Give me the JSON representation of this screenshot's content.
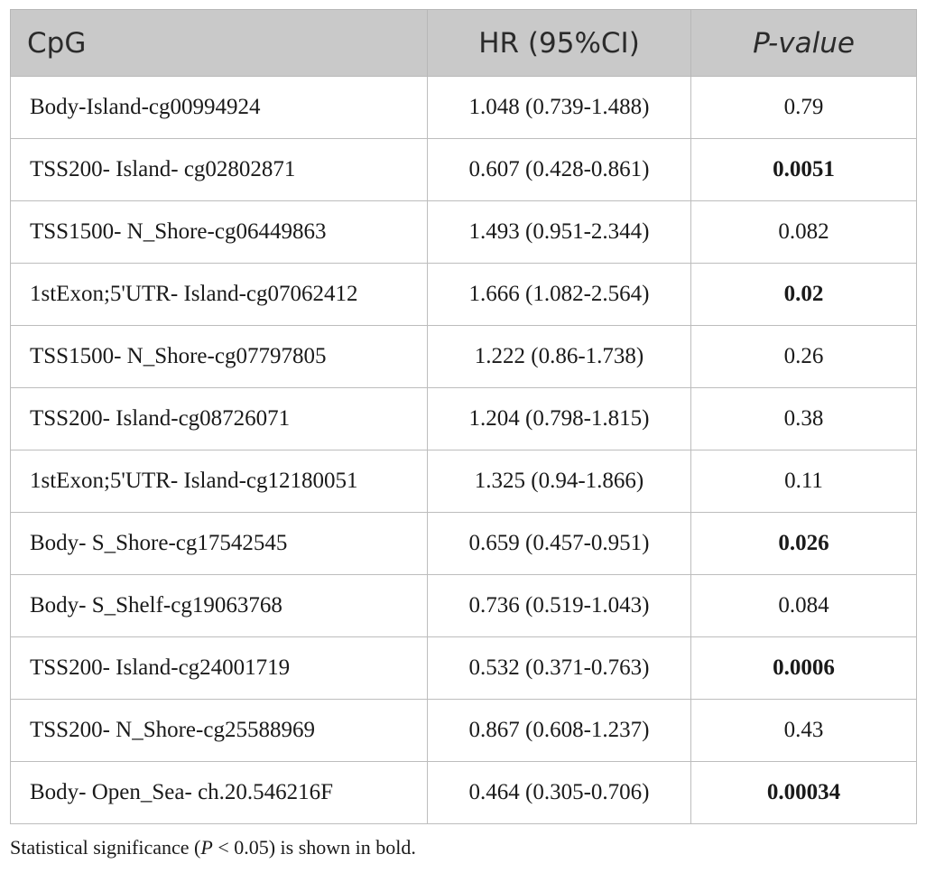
{
  "table": {
    "headers": [
      "CpG",
      "HR (95%CI)",
      "P-value"
    ],
    "rows": [
      {
        "cpg": "Body-Island-cg00994924",
        "hr": "1.048 (0.739-1.488)",
        "p": "0.79",
        "significant": false
      },
      {
        "cpg": "TSS200- Island- cg02802871",
        "hr": "0.607 (0.428-0.861)",
        "p": "0.0051",
        "significant": true
      },
      {
        "cpg": "TSS1500- N_Shore-cg06449863",
        "hr": "1.493 (0.951-2.344)",
        "p": "0.082",
        "significant": false
      },
      {
        "cpg": "1stExon;5'UTR- Island-cg07062412",
        "hr": "1.666 (1.082-2.564)",
        "p": "0.02",
        "significant": true
      },
      {
        "cpg": "TSS1500- N_Shore-cg07797805",
        "hr": "1.222 (0.86-1.738)",
        "p": "0.26",
        "significant": false
      },
      {
        "cpg": "TSS200- Island-cg08726071",
        "hr": "1.204 (0.798-1.815)",
        "p": "0.38",
        "significant": false
      },
      {
        "cpg": "1stExon;5'UTR- Island-cg12180051",
        "hr": "1.325 (0.94-1.866)",
        "p": "0.11",
        "significant": false
      },
      {
        "cpg": "Body- S_Shore-cg17542545",
        "hr": "0.659 (0.457-0.951)",
        "p": "0.026",
        "significant": true
      },
      {
        "cpg": "Body- S_Shelf-cg19063768",
        "hr": "0.736 (0.519-1.043)",
        "p": "0.084",
        "significant": false
      },
      {
        "cpg": "TSS200- Island-cg24001719",
        "hr": "0.532 (0.371-0.763)",
        "p": "0.0006",
        "significant": true
      },
      {
        "cpg": "TSS200- N_Shore-cg25588969",
        "hr": "0.867 (0.608-1.237)",
        "p": "0.43",
        "significant": false
      },
      {
        "cpg": "Body- Open_Sea- ch.20.546216F",
        "hr": "0.464 (0.305-0.706)",
        "p": "0.00034",
        "significant": true
      }
    ]
  },
  "footnote": {
    "before": "Statistical significance (",
    "italic": "P",
    "after": " < 0.05) is shown in bold."
  }
}
